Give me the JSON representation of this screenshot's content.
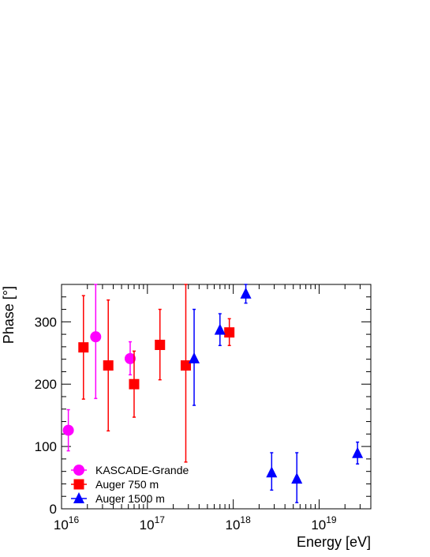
{
  "chart_data": {
    "type": "scatter",
    "title": "",
    "xlabel": "Energy [eV]",
    "ylabel": "Phase [°]",
    "xscale": "log",
    "xlim": [
      1e+16,
      4e+19
    ],
    "ylim": [
      0,
      360
    ],
    "x_tick_labels": [
      {
        "value": 1e+16,
        "base": "10",
        "exp": "16"
      },
      {
        "value": 1e+17,
        "base": "10",
        "exp": "17"
      },
      {
        "value": 1e+18,
        "base": "10",
        "exp": "18"
      },
      {
        "value": 1e+19,
        "base": "10",
        "exp": "19"
      }
    ],
    "y_ticks": [
      "0",
      "100",
      "200",
      "300"
    ],
    "grid": false,
    "legend_position": "bottom-left",
    "series": [
      {
        "name": "KASCADE-Grande",
        "color": "#ff00ff",
        "marker": "circle",
        "points": [
          {
            "x": 1.2e+16,
            "y": 126,
            "lo": 93,
            "hi": 159
          },
          {
            "x": 2.5e+16,
            "y": 276,
            "lo": 177,
            "hi": 360
          },
          {
            "x": 6.3e+16,
            "y": 241,
            "lo": 215,
            "hi": 268
          }
        ]
      },
      {
        "name": "Auger 750 m",
        "color": "#ff0000",
        "marker": "square",
        "points": [
          {
            "x": 1.8e+16,
            "y": 259,
            "lo": 176,
            "hi": 342
          },
          {
            "x": 3.5e+16,
            "y": 230,
            "lo": 125,
            "hi": 335
          },
          {
            "x": 7e+16,
            "y": 200,
            "lo": 147,
            "hi": 253
          },
          {
            "x": 1.4e+17,
            "y": 263,
            "lo": 207,
            "hi": 320
          },
          {
            "x": 2.8e+17,
            "y": 230,
            "lo": 75,
            "hi": 360
          },
          {
            "x": 9e+17,
            "y": 283,
            "lo": 262,
            "hi": 305
          }
        ]
      },
      {
        "name": "Auger 1500 m",
        "color": "#0000ff",
        "marker": "triangle",
        "points": [
          {
            "x": 3.5e+17,
            "y": 241,
            "lo": 166,
            "hi": 320
          },
          {
            "x": 7e+17,
            "y": 287,
            "lo": 262,
            "hi": 313
          },
          {
            "x": 1.4e+18,
            "y": 345,
            "lo": 330,
            "hi": 360
          },
          {
            "x": 2.8e+18,
            "y": 58,
            "lo": 30,
            "hi": 90
          },
          {
            "x": 5.5e+18,
            "y": 48,
            "lo": 10,
            "hi": 90
          },
          {
            "x": 2.8e+19,
            "y": 89,
            "lo": 72,
            "hi": 107
          }
        ]
      }
    ]
  }
}
